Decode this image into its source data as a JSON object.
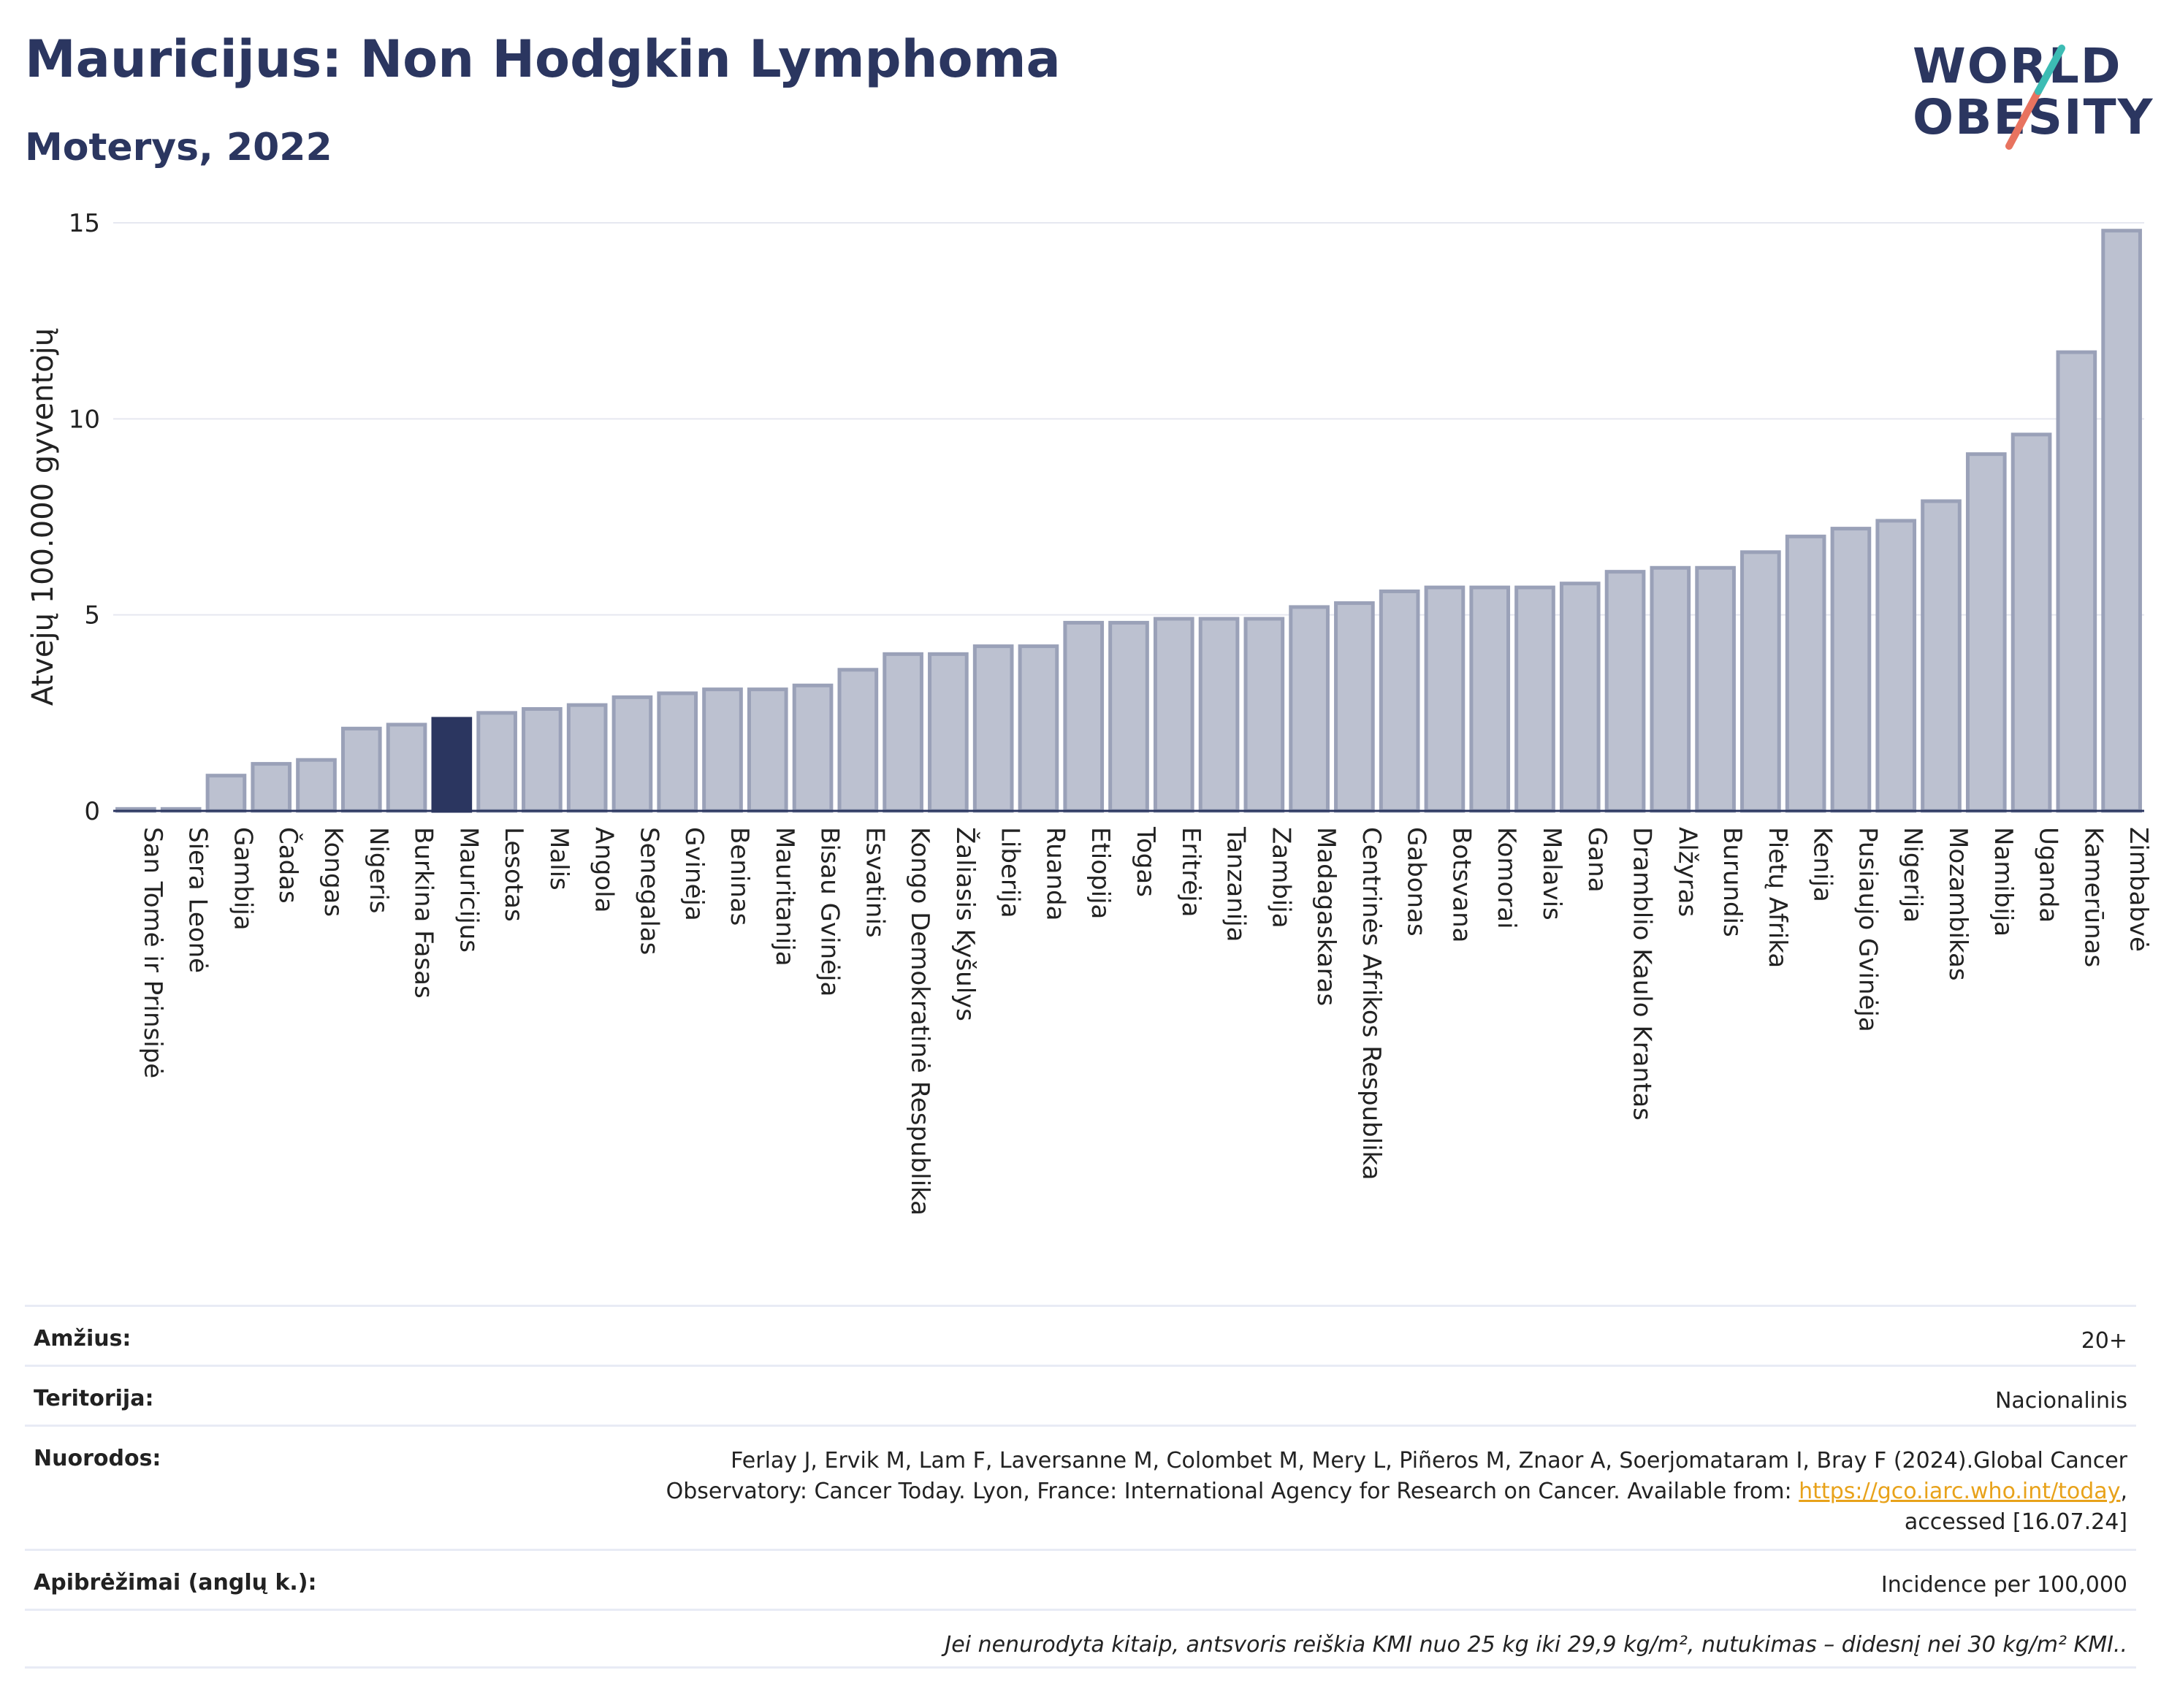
{
  "header": {
    "title": "Mauricijus: Non Hodgkin Lymphoma",
    "subtitle": "Moterys, 2022"
  },
  "logo": {
    "line1": "WORLD",
    "line2": "OBESITY",
    "colors": {
      "teal": "#3cbcb4",
      "coral": "#e8735f",
      "navy": "#2b3660"
    }
  },
  "chart_data": {
    "type": "bar",
    "ylabel": "Atvejų 100.000 gyventojų",
    "ylim": [
      0,
      15
    ],
    "yticks": [
      0,
      5,
      10,
      15
    ],
    "grid": true,
    "highlight": "Mauricijus",
    "colors": {
      "bar": "#bcc1d0",
      "bar_edge": "#9aa1b8",
      "highlight": "#2b3660"
    },
    "categories": [
      "San Tomė ir Prinsipė",
      "Siera Leonė",
      "Gambija",
      "Čadas",
      "Kongas",
      "Nigeris",
      "Burkina Fasas",
      "Mauricijus",
      "Lesotas",
      "Malis",
      "Angola",
      "Senegalas",
      "Gvinėja",
      "Beninas",
      "Mauritanija",
      "Bisau Gvinėja",
      "Esvatinis",
      "Kongo Demokratinė Respublika",
      "Žaliasis Kyšulys",
      "Liberija",
      "Ruanda",
      "Etiopija",
      "Togas",
      "Eritrėja",
      "Tanzanija",
      "Zambija",
      "Madagaskaras",
      "Centrinės Afrikos Respublika",
      "Gabonas",
      "Botsvana",
      "Komorai",
      "Malavis",
      "Gana",
      "Dramblio Kaulo Krantas",
      "Alžyras",
      "Burundis",
      "Pietų Afrika",
      "Kenija",
      "Pusiaujo Gvinėja",
      "Nigerija",
      "Mozambikas",
      "Namibija",
      "Uganda",
      "Kamerūnas",
      "Zimbabvė"
    ],
    "values": [
      0.05,
      0.05,
      0.9,
      1.2,
      1.3,
      2.1,
      2.2,
      2.35,
      2.5,
      2.6,
      2.7,
      2.9,
      3.0,
      3.1,
      3.1,
      3.2,
      3.6,
      4.0,
      4.0,
      4.2,
      4.2,
      4.8,
      4.8,
      4.9,
      4.9,
      4.9,
      5.2,
      5.3,
      5.6,
      5.7,
      5.7,
      5.7,
      5.8,
      6.1,
      6.2,
      6.2,
      6.6,
      7.0,
      7.2,
      7.4,
      7.9,
      9.1,
      9.6,
      11.7,
      14.8
    ]
  },
  "info": {
    "age_label": "Amžius:",
    "age_value": "20+",
    "territory_label": "Teritorija:",
    "territory_value": "Nacionalinis",
    "refs_label": "Nuorodos:",
    "refs_text_1": "Ferlay J, Ervik M, Lam F, Laversanne M, Colombet M, Mery L, Piñeros M, Znaor A, Soerjomataram I, Bray F (2024).Global Cancer",
    "refs_text_2": "Observatory: Cancer Today. Lyon, France: International Agency for Research on Cancer. Available from: ",
    "refs_link": "https://gco.iarc.who.int/today",
    "refs_text_3": ",",
    "refs_text_4": "accessed [16.07.24]",
    "defs_label": "Apibrėžimai (anglų k.):",
    "defs_value": "Incidence per 100,000",
    "note": "Jei nenurodyta kitaip, antsvoris reiškia KMI nuo 25 kg iki 29,9 kg/m², nutukimas – didesnį nei 30 kg/m² KMI.."
  }
}
